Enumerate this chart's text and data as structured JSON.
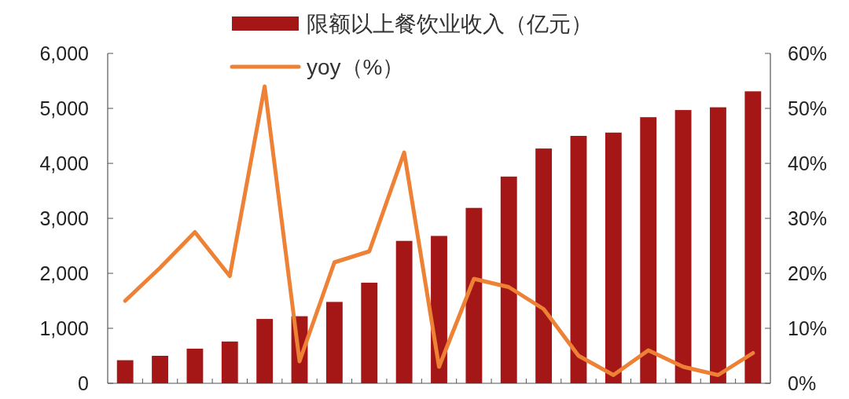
{
  "chart_data": {
    "type": "bar",
    "categories": [
      null,
      null,
      null,
      null,
      null,
      null,
      null,
      null,
      null,
      null,
      null,
      null,
      null,
      null,
      null,
      null,
      null,
      null,
      null
    ],
    "series": [
      {
        "name": "限额以上餐饮业收入（亿元）",
        "color": "#a51717",
        "values": [
          420,
          500,
          630,
          760,
          1170,
          1220,
          1480,
          1830,
          2590,
          2680,
          3190,
          3760,
          4270,
          4500,
          4560,
          4840,
          4970,
          5020,
          5310
        ]
      },
      {
        "name": "yoy（%）",
        "type": "line",
        "axis": "y2",
        "color": "#ed8135",
        "values": [
          15,
          21,
          27.5,
          19.5,
          54,
          4,
          22,
          24,
          42,
          3,
          19,
          17.5,
          13.5,
          5,
          1.5,
          6,
          3,
          1.5,
          5.5
        ]
      }
    ],
    "ylim": [
      0,
      6000
    ],
    "yticks": [
      {
        "value": 0,
        "label": "0"
      },
      {
        "value": 1000,
        "label": "1,000"
      },
      {
        "value": 2000,
        "label": "2,000"
      },
      {
        "value": 3000,
        "label": "3,000"
      },
      {
        "value": 4000,
        "label": "4,000"
      },
      {
        "value": 5000,
        "label": "5,000"
      },
      {
        "value": 6000,
        "label": "6,000"
      }
    ],
    "y2lim": [
      0,
      60
    ],
    "y2ticks": [
      {
        "value": 0,
        "label": "0%"
      },
      {
        "value": 10,
        "label": "10%"
      },
      {
        "value": 20,
        "label": "20%"
      },
      {
        "value": 30,
        "label": "30%"
      },
      {
        "value": 40,
        "label": "40%"
      },
      {
        "value": 50,
        "label": "50%"
      },
      {
        "value": 60,
        "label": "60%"
      }
    ],
    "legend": "top",
    "grid": false,
    "marker": "none",
    "line_style": "solid"
  }
}
